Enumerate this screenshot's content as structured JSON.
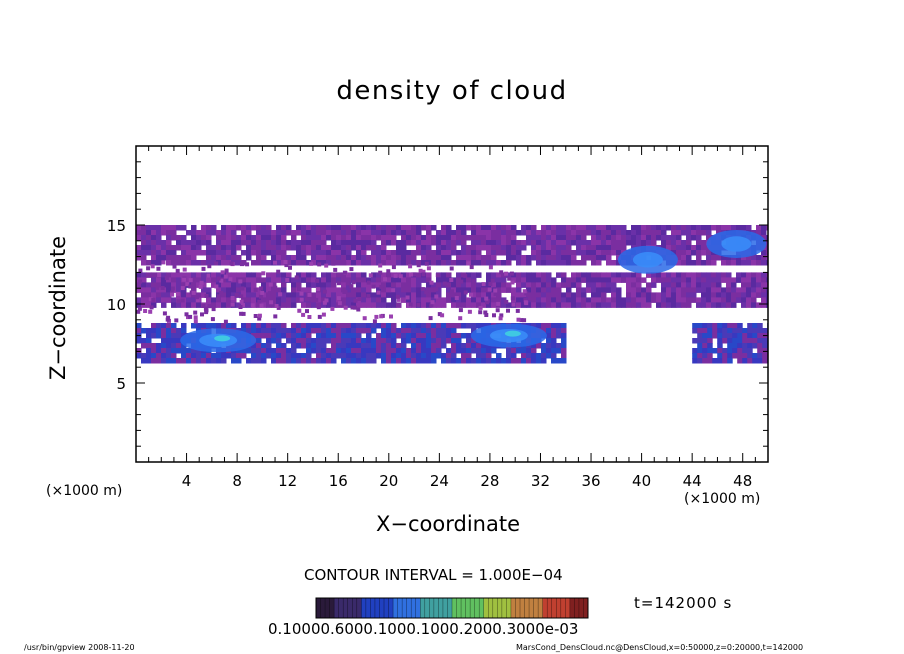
{
  "chart_data": {
    "type": "heatmap",
    "title": "density of cloud",
    "xlabel": "X−coordinate",
    "ylabel": "Z−coordinate",
    "x_unit_label": "(×1000 m)",
    "xlim": [
      0,
      50
    ],
    "ylim": [
      0,
      20
    ],
    "x_ticks": [
      4,
      8,
      12,
      16,
      20,
      24,
      28,
      32,
      36,
      40,
      44,
      48
    ],
    "y_ticks": [
      5,
      10,
      15
    ],
    "x_tick_labels": [
      "4",
      "8",
      "12",
      "16",
      "20",
      "24",
      "28",
      "32",
      "36",
      "40",
      "44",
      "48"
    ],
    "y_tick_labels": [
      "5",
      "10",
      "15"
    ],
    "contour_interval": "CONTOUR INTERVAL = 1.000E−04",
    "time_label": "t=142000 s",
    "colorbar_labels": "0.10000.6000.1000.1000.2000.3000e-03",
    "colorbar_colors": [
      "#2a1a3a",
      "#3a2a6a",
      "#2040c0",
      "#3070e0",
      "#40a0a0",
      "#60c060",
      "#a0c040",
      "#c08040",
      "#c04030",
      "#802020"
    ],
    "cloud_layers": [
      {
        "z_low": 12.5,
        "z_high": 15.0,
        "x_start": 0,
        "x_end": 50,
        "level": "low"
      },
      {
        "z_low": 10.0,
        "z_high": 12.0,
        "x_start": 0,
        "x_end": 50,
        "level": "low"
      },
      {
        "z_low": 6.5,
        "z_high": 8.8,
        "x_start": 0,
        "x_end": 34,
        "level": "medium"
      },
      {
        "z_low": 6.5,
        "z_high": 8.8,
        "x_start": 44,
        "x_end": 50,
        "level": "medium"
      }
    ],
    "peak_regions": [
      {
        "x": 6.5,
        "z": 7.7,
        "level": "high"
      },
      {
        "x": 29.5,
        "z": 8.0,
        "level": "high"
      },
      {
        "x": 40.5,
        "z": 12.8,
        "level": "medium"
      },
      {
        "x": 47.5,
        "z": 13.8,
        "level": "medium"
      }
    ],
    "grid": false
  },
  "footer": {
    "program": "/usr/bin/gpview   2008-11-20",
    "source": "MarsCond_DensCloud.nc@DensCloud,x=0:50000,z=0:20000,t=142000"
  },
  "colors": {
    "low": "#7a2ea0",
    "medium": "#3838c0",
    "high": "#2a6ae8",
    "peak": "#40d0e0"
  }
}
